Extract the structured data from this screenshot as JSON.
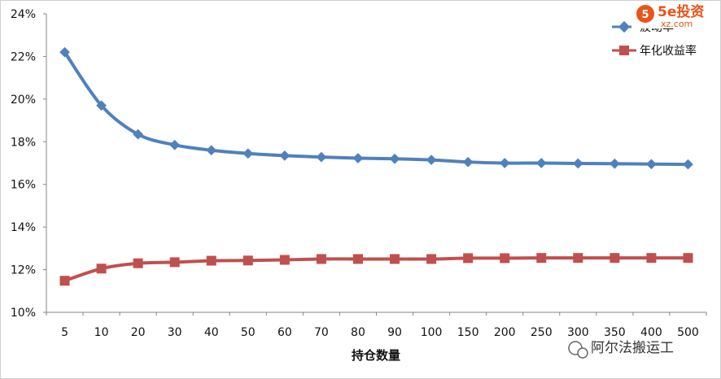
{
  "chart_data": {
    "type": "line",
    "xlabel": "持仓数量",
    "ylabel": "",
    "categories": [
      "5",
      "10",
      "20",
      "30",
      "40",
      "50",
      "60",
      "70",
      "80",
      "90",
      "100",
      "150",
      "200",
      "250",
      "300",
      "350",
      "400",
      "500"
    ],
    "ylim": [
      10,
      24
    ],
    "yticks": [
      "10%",
      "12%",
      "14%",
      "16%",
      "18%",
      "20%",
      "22%",
      "24%"
    ],
    "grid": false,
    "legend_position": "top-right",
    "series": [
      {
        "name": "波动率",
        "color": "#4f81bd",
        "marker": "diamond",
        "values": [
          22.2,
          19.7,
          18.35,
          17.85,
          17.6,
          17.45,
          17.35,
          17.28,
          17.23,
          17.2,
          17.15,
          17.05,
          17.0,
          17.0,
          16.98,
          16.97,
          16.95,
          16.94
        ]
      },
      {
        "name": "年化收益率",
        "color": "#c0504d",
        "marker": "square",
        "values": [
          11.48,
          12.05,
          12.3,
          12.35,
          12.42,
          12.43,
          12.46,
          12.5,
          12.5,
          12.5,
          12.5,
          12.54,
          12.54,
          12.55,
          12.55,
          12.55,
          12.55,
          12.55
        ]
      }
    ]
  },
  "watermark": {
    "logo_text": "5e投资",
    "logo_sub": "xz.com",
    "channel_text": "阿尔法搬运工"
  }
}
